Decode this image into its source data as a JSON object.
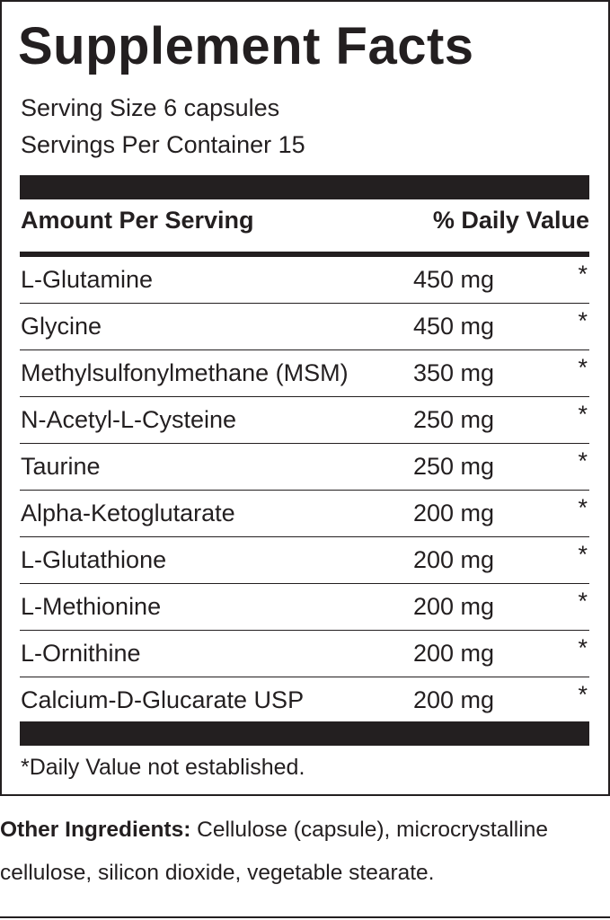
{
  "header": {
    "title": "Supplement Facts",
    "serving_size": "Serving Size 6 capsules",
    "servings_per_container": "Servings Per Container 15"
  },
  "table": {
    "columns": [
      "Amount Per Serving",
      "% Daily Value"
    ],
    "rows": [
      [
        "L-Glutamine",
        "450 mg",
        "*"
      ],
      [
        "Glycine",
        "450 mg",
        "*"
      ],
      [
        "Methylsulfonylmethane (MSM)",
        "350 mg",
        "*"
      ],
      [
        "N-Acetyl-L-Cysteine",
        "250 mg",
        "*"
      ],
      [
        "Taurine",
        "250 mg",
        "*"
      ],
      [
        "Alpha-Ketoglutarate",
        "200 mg",
        "*"
      ],
      [
        "L-Glutathione",
        "200 mg",
        "*"
      ],
      [
        "L-Methionine",
        "200 mg",
        "*"
      ],
      [
        "L-Ornithine",
        "200 mg",
        "*"
      ],
      [
        "Calcium-D-Glucarate USP",
        "200 mg",
        "*"
      ]
    ]
  },
  "footnote": "*Daily Value not established.",
  "other_ingredients": {
    "label": "Other Ingredients:",
    "text": "Cellulose (capsule), microcrystalline cellulose, silicon dioxide, vegetable stearate."
  }
}
